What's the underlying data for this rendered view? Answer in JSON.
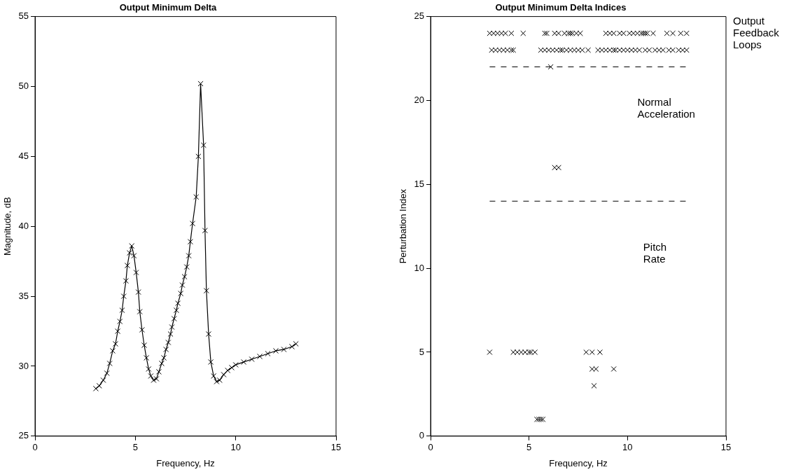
{
  "chart_data": [
    {
      "type": "line",
      "title": "Output Minimum Delta",
      "xlabel": "Frequency, Hz",
      "ylabel": "Magnitude, dB",
      "xlim": [
        0,
        15
      ],
      "xticks": [
        0,
        5,
        10,
        15
      ],
      "ylim": [
        25,
        55
      ],
      "yticks": [
        25,
        30,
        35,
        40,
        45,
        50,
        55
      ],
      "grid": false,
      "series": [
        {
          "color": "#000000",
          "marker": "cross",
          "line_style": "solid",
          "x": [
            3.03,
            3.2,
            3.4,
            3.58,
            3.72,
            3.87,
            4.01,
            4.12,
            4.23,
            4.34,
            4.42,
            4.53,
            4.6,
            4.71,
            4.82,
            4.93,
            5.04,
            5.15,
            5.22,
            5.33,
            5.44,
            5.55,
            5.66,
            5.77,
            5.91,
            6.05,
            6.17,
            6.31,
            6.42,
            6.53,
            6.64,
            6.75,
            6.82,
            6.93,
            7.04,
            7.12,
            7.26,
            7.34,
            7.45,
            7.56,
            7.66,
            7.74,
            7.85,
            8.03,
            8.14,
            8.25,
            8.4,
            8.47,
            8.54,
            8.65,
            8.76,
            8.9,
            9.05,
            9.2,
            9.4,
            9.6,
            9.8,
            10.0,
            10.4,
            10.8,
            11.2,
            11.6,
            12.0,
            12.4,
            12.8,
            13.0
          ],
          "values": [
            28.4,
            28.6,
            29.0,
            29.5,
            30.2,
            31.1,
            31.6,
            32.5,
            33.2,
            34.0,
            35.0,
            36.1,
            37.2,
            38.1,
            38.6,
            37.9,
            36.7,
            35.3,
            33.9,
            32.6,
            31.5,
            30.6,
            29.8,
            29.3,
            29.0,
            29.1,
            29.6,
            30.2,
            30.6,
            31.2,
            31.7,
            32.3,
            32.8,
            33.4,
            34.0,
            34.5,
            35.2,
            35.8,
            36.4,
            37.1,
            37.9,
            38.9,
            40.2,
            42.1,
            45.0,
            50.2,
            45.8,
            39.7,
            35.4,
            32.3,
            30.3,
            29.3,
            28.9,
            29.0,
            29.4,
            29.7,
            29.9,
            30.1,
            30.3,
            30.5,
            30.7,
            30.9,
            31.1,
            31.2,
            31.4,
            31.6
          ]
        }
      ]
    },
    {
      "type": "scatter",
      "title": "Output Minimum Delta Indices",
      "xlabel": "Frequency, Hz",
      "ylabel": "Perturbation Index",
      "xlim": [
        0,
        15
      ],
      "xticks": [
        0,
        5,
        10,
        15
      ],
      "ylim": [
        0,
        25
      ],
      "yticks": [
        0,
        5,
        10,
        15,
        20,
        25
      ],
      "grid": false,
      "annotations": [
        "Output Feedback Loops",
        "Normal Acceleration",
        "Pitch Rate"
      ],
      "series": [
        {
          "color": "#000000",
          "marker": "cross",
          "x": [
            3.0,
            3.2,
            3.4,
            3.6,
            3.8,
            4.1,
            4.7,
            5.8,
            5.9,
            6.3,
            6.5,
            6.8,
            7.0,
            7.1,
            7.2,
            7.4,
            7.6,
            8.9,
            9.1,
            9.3,
            9.6,
            9.8,
            10.1,
            10.3,
            10.5,
            10.7,
            10.8,
            10.9,
            11.0,
            11.3,
            12.0,
            12.3,
            12.7,
            13.0,
            3.1,
            3.3,
            3.5,
            3.7,
            3.9,
            4.1,
            4.2,
            5.6,
            5.8,
            6.0,
            6.2,
            6.4,
            6.6,
            6.7,
            6.9,
            7.1,
            7.3,
            7.5,
            7.7,
            8.0,
            8.5,
            8.7,
            8.9,
            9.1,
            9.3,
            9.4,
            9.6,
            9.8,
            10.0,
            10.2,
            10.4,
            10.6,
            10.9,
            11.1,
            11.4,
            11.6,
            11.8,
            12.1,
            12.3,
            12.6,
            12.8,
            13.0,
            6.1,
            6.3,
            6.5,
            3.0,
            4.2,
            4.4,
            4.6,
            4.8,
            5.0,
            5.1,
            5.3,
            7.9,
            8.2,
            8.6,
            8.2,
            8.4,
            9.3,
            8.3,
            5.4,
            5.5,
            5.6,
            5.7
          ],
          "values": [
            24,
            24,
            24,
            24,
            24,
            24,
            24,
            24,
            24,
            24,
            24,
            24,
            24,
            24,
            24,
            24,
            24,
            24,
            24,
            24,
            24,
            24,
            24,
            24,
            24,
            24,
            24,
            24,
            24,
            24,
            24,
            24,
            24,
            24,
            23,
            23,
            23,
            23,
            23,
            23,
            23,
            23,
            23,
            23,
            23,
            23,
            23,
            23,
            23,
            23,
            23,
            23,
            23,
            23,
            23,
            23,
            23,
            23,
            23,
            23,
            23,
            23,
            23,
            23,
            23,
            23,
            23,
            23,
            23,
            23,
            23,
            23,
            23,
            23,
            23,
            23,
            22,
            16,
            16,
            5,
            5,
            5,
            5,
            5,
            5,
            5,
            5,
            5,
            5,
            5,
            4,
            4,
            4,
            3,
            1,
            1,
            1,
            1
          ]
        },
        {
          "type": "line",
          "color": "#000000",
          "marker": "none",
          "line_style": "dashed",
          "x": [
            3,
            13
          ],
          "values": [
            22,
            22
          ]
        },
        {
          "type": "line",
          "color": "#000000",
          "marker": "none",
          "line_style": "dashed",
          "x": [
            3,
            13
          ],
          "values": [
            14,
            14
          ]
        }
      ]
    }
  ]
}
